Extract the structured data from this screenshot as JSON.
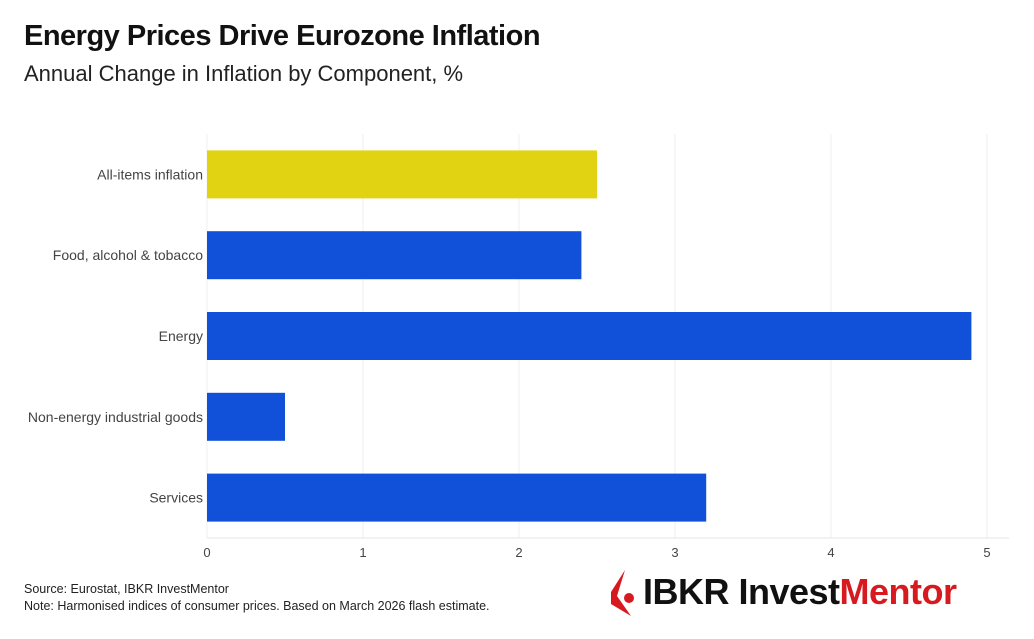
{
  "chart_data": {
    "type": "bar",
    "orientation": "horizontal",
    "title": "Energy Prices Drive Eurozone Inflation",
    "subtitle": "Annual Change in Inflation by Component, %",
    "categories": [
      "All-items inflation",
      "Food, alcohol & tobacco",
      "Energy",
      "Non-energy industrial goods",
      "Services"
    ],
    "values": [
      2.5,
      2.4,
      4.9,
      0.5,
      3.2
    ],
    "colors": [
      "#e2d312",
      "#1150d8",
      "#1150d8",
      "#1150d8",
      "#1150d8"
    ],
    "xlim": [
      0,
      5
    ],
    "xticks": [
      "0",
      "1",
      "2",
      "3",
      "4",
      "5"
    ],
    "grid": true,
    "xlabel": "",
    "ylabel": ""
  },
  "footer": {
    "source": "Source: Eurostat, IBKR InvestMentor",
    "note": "Note: Harmonised indices of consumer prices. Based on March 2026 flash estimate."
  },
  "logo": {
    "text_black": "IBKR Invest",
    "text_red": "Mentor",
    "color": "#d71920"
  }
}
